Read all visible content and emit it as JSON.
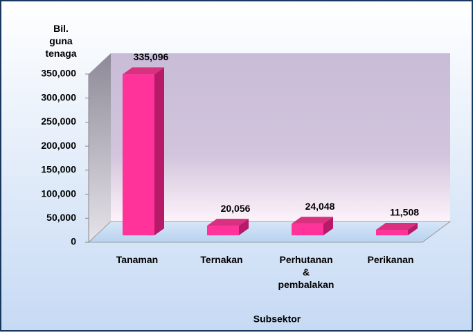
{
  "chart_data": {
    "type": "bar3d",
    "y_axis_label": "Bil. guna tenaga",
    "x_axis_label": "Subsektor",
    "categories": [
      "Tanaman",
      "Ternakan",
      "Perhutanan & pembalakan",
      "Perikanan"
    ],
    "values": [
      335096,
      20056,
      24048,
      11508
    ],
    "value_labels": [
      "335,096",
      "20,056",
      "24,048",
      "11,508"
    ],
    "color": "#ff3399",
    "ylim": [
      0,
      350000
    ],
    "yticks": [
      0,
      {
        "value": 50000,
        "label": "50,000"
      },
      {
        "value": 100000,
        "label": "100,000"
      },
      {
        "value": 150000,
        "label": "150,000"
      },
      {
        "value": 200000,
        "label": "200,000"
      },
      {
        "value": 250000,
        "label": "250,000"
      },
      {
        "value": 300000,
        "label": "300,000"
      },
      {
        "value": 350000,
        "label": "350,000"
      }
    ]
  }
}
